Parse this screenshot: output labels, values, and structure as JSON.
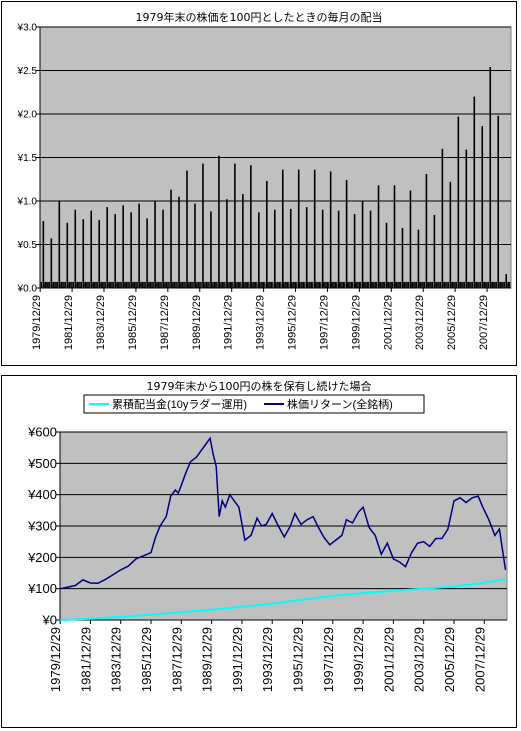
{
  "chart_data": [
    {
      "type": "bar",
      "title": "1979年末の株価を100円としたときの毎月の配当",
      "ylim": [
        0,
        3.0
      ],
      "yticks": [
        "¥0.0",
        "¥0.5",
        "¥1.0",
        "¥1.5",
        "¥2.0",
        "¥2.5",
        "¥3.0"
      ],
      "ytick_values": [
        0,
        0.5,
        1.0,
        1.5,
        2.0,
        2.5,
        3.0
      ],
      "xlim_years": [
        1979.99,
        2009.5
      ],
      "xticks": [
        "1979/12/29",
        "1981/12/29",
        "1983/12/29",
        "1985/12/29",
        "1987/12/29",
        "1989/12/29",
        "1991/12/29",
        "1993/12/29",
        "1995/12/29",
        "1997/12/29",
        "1999/12/29",
        "2001/12/29",
        "2003/12/29",
        "2005/12/29",
        "2007/12/29"
      ],
      "xtick_years": [
        1980,
        1982,
        1984,
        1986,
        1988,
        1990,
        1992,
        1994,
        1996,
        1998,
        2000,
        2002,
        2004,
        2006,
        2008
      ],
      "grid": true,
      "plot_bg": "#c0c0c0",
      "bar_color": "#000000",
      "peaks": {
        "years": [
          1980.2,
          1980.7,
          1981.2,
          1981.7,
          1982.2,
          1982.7,
          1983.2,
          1983.7,
          1984.2,
          1984.7,
          1985.2,
          1985.7,
          1986.2,
          1986.7,
          1987.2,
          1987.7,
          1988.2,
          1988.7,
          1989.2,
          1989.7,
          1990.2,
          1990.7,
          1991.2,
          1991.7,
          1992.2,
          1992.7,
          1993.2,
          1993.7,
          1994.2,
          1994.7,
          1995.2,
          1995.7,
          1996.2,
          1996.7,
          1997.2,
          1997.7,
          1998.2,
          1998.7,
          1999.2,
          1999.7,
          2000.2,
          2000.7,
          2001.2,
          2001.7,
          2002.2,
          2002.7,
          2003.2,
          2003.7,
          2004.2,
          2004.7,
          2005.2,
          2005.7,
          2006.2,
          2006.7,
          2007.2,
          2007.7,
          2008.2,
          2008.7,
          2009.2
        ],
        "values": [
          0.77,
          0.57,
          1.0,
          0.75,
          0.9,
          0.79,
          0.89,
          0.78,
          0.93,
          0.85,
          0.95,
          0.87,
          0.97,
          0.8,
          1.0,
          0.9,
          1.13,
          1.05,
          1.35,
          0.97,
          1.43,
          0.88,
          1.52,
          1.02,
          1.43,
          1.08,
          1.41,
          0.87,
          1.23,
          0.9,
          1.36,
          0.91,
          1.36,
          0.93,
          1.36,
          0.9,
          1.34,
          0.89,
          1.24,
          0.85,
          1.0,
          0.89,
          1.18,
          0.75,
          1.18,
          0.69,
          1.12,
          0.67,
          1.31,
          0.84,
          1.6,
          1.22,
          1.97,
          1.59,
          2.2,
          1.86,
          2.54,
          1.98,
          0.16
        ]
      },
      "small_level": 0.07
    },
    {
      "type": "line",
      "title": "1979年末から100円の株を保有し続けた場合",
      "ylim": [
        0,
        600
      ],
      "yticks": [
        "¥0",
        "¥100",
        "¥200",
        "¥300",
        "¥400",
        "¥500",
        "¥600"
      ],
      "ytick_values": [
        0,
        100,
        200,
        300,
        400,
        500,
        600
      ],
      "xlim_years": [
        1979.99,
        2009.5
      ],
      "xticks": [
        "1979/12/29",
        "1981/12/29",
        "1983/12/29",
        "1985/12/29",
        "1987/12/29",
        "1989/12/29",
        "1991/12/29",
        "1993/12/29",
        "1995/12/29",
        "1997/12/29",
        "1999/12/29",
        "2001/12/29",
        "2003/12/29",
        "2005/12/29",
        "2007/12/29"
      ],
      "xtick_years": [
        1980,
        1982,
        1984,
        1986,
        1988,
        1990,
        1992,
        1994,
        1996,
        1998,
        2000,
        2002,
        2004,
        2006,
        2008
      ],
      "grid": true,
      "plot_bg": "#c0c0c0",
      "legend_placement": "top",
      "series": [
        {
          "name": "累積配当金(10yラダー運用)",
          "color": "#00ffff",
          "x": [
            1980,
            1982,
            1984,
            1986,
            1988,
            1990,
            1992,
            1994,
            1996,
            1998,
            2000,
            2002,
            2004,
            2006,
            2008,
            2009.4
          ],
          "values": [
            0,
            4,
            10,
            17,
            25,
            33,
            42,
            52,
            65,
            77,
            86,
            93,
            100,
            107,
            119,
            130
          ]
        },
        {
          "name": "株価リターン(全銘柄)",
          "color": "#000080",
          "x": [
            1980,
            1980.5,
            1981,
            1981.5,
            1982,
            1982.5,
            1983,
            1983.5,
            1984,
            1984.5,
            1985,
            1985.5,
            1986,
            1986.3,
            1986.6,
            1987,
            1987.3,
            1987.6,
            1987.8,
            1988,
            1988.3,
            1988.6,
            1989,
            1989.3,
            1989.6,
            1989.9,
            1990.1,
            1990.3,
            1990.5,
            1990.7,
            1990.9,
            1991.2,
            1991.5,
            1991.8,
            1992.2,
            1992.6,
            1993,
            1993.3,
            1993.6,
            1994,
            1994.4,
            1994.8,
            1995.2,
            1995.5,
            1995.9,
            1996.3,
            1996.7,
            1997,
            1997.4,
            1997.8,
            1998.2,
            1998.6,
            1998.9,
            1999.3,
            1999.7,
            2000,
            2000.4,
            2000.8,
            2001.2,
            2001.6,
            2002,
            2002.4,
            2002.8,
            2003.2,
            2003.6,
            2004,
            2004.4,
            2004.8,
            2005.2,
            2005.6,
            2006,
            2006.4,
            2006.8,
            2007.2,
            2007.6,
            2007.9,
            2008.3,
            2008.7,
            2009,
            2009.4
          ],
          "values": [
            100,
            105,
            110,
            128,
            118,
            117,
            130,
            145,
            160,
            172,
            195,
            205,
            215,
            265,
            300,
            330,
            395,
            415,
            405,
            430,
            470,
            505,
            520,
            540,
            560,
            580,
            530,
            490,
            330,
            380,
            360,
            400,
            380,
            360,
            255,
            270,
            325,
            300,
            305,
            340,
            300,
            265,
            300,
            340,
            305,
            320,
            330,
            300,
            265,
            240,
            255,
            270,
            320,
            310,
            345,
            360,
            295,
            270,
            210,
            245,
            195,
            185,
            170,
            215,
            245,
            250,
            235,
            260,
            260,
            290,
            380,
            390,
            375,
            390,
            395,
            360,
            320,
            270,
            290,
            160
          ]
        }
      ]
    }
  ]
}
